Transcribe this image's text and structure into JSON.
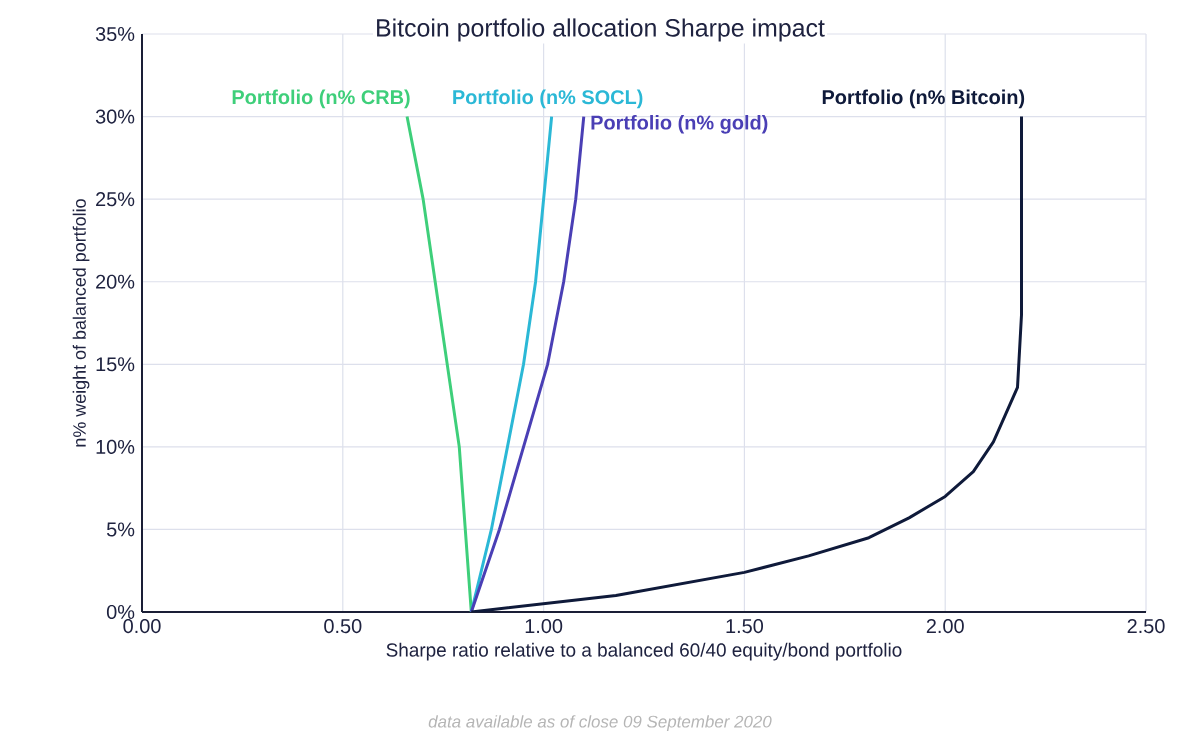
{
  "chart_data": {
    "type": "line",
    "title": "Bitcoin portfolio allocation Sharpe impact",
    "xlabel": "Sharpe ratio relative to a balanced 60/40 equity/bond portfolio",
    "ylabel": "n% weight of balanced portfolio",
    "annotations": [
      "data available as of close 09 September 2020"
    ],
    "xlim": [
      0,
      2.5
    ],
    "ylim": [
      0,
      35
    ],
    "xticks": [
      {
        "value": 0,
        "label": "0.00"
      },
      {
        "value": 0.5,
        "label": "0.50"
      },
      {
        "value": 1,
        "label": "1.00"
      },
      {
        "value": 1.5,
        "label": "1.50"
      },
      {
        "value": 2,
        "label": "2.00"
      },
      {
        "value": 2.5,
        "label": "2.50"
      }
    ],
    "yticks": [
      {
        "value": 0,
        "label": "0%"
      },
      {
        "value": 5,
        "label": "5%"
      },
      {
        "value": 10,
        "label": "10%"
      },
      {
        "value": 15,
        "label": "15%"
      },
      {
        "value": 20,
        "label": "20%"
      },
      {
        "value": 25,
        "label": "25%"
      },
      {
        "value": 30,
        "label": "30%"
      },
      {
        "value": 35,
        "label": "35%"
      }
    ],
    "grid": true,
    "legend": false,
    "marker": "none",
    "line_style": "solid",
    "series": [
      {
        "name": "Portfolio (n% CRB)",
        "color": "#3ecf7a",
        "x": [
          0.82,
          0.79,
          0.76,
          0.73,
          0.7,
          0.66
        ],
        "values": [
          0,
          10,
          15,
          20,
          25,
          30
        ]
      },
      {
        "name": "Portfolio (n% SOCL)",
        "color": "#2bb8d6",
        "x": [
          0.82,
          0.87,
          0.91,
          0.95,
          0.98,
          1.0,
          1.02
        ],
        "values": [
          0,
          5,
          10,
          15,
          20,
          25,
          30
        ]
      },
      {
        "name": "Portfolio (n% gold)",
        "color": "#4a3fb5",
        "x": [
          0.82,
          0.89,
          0.95,
          1.01,
          1.05,
          1.08,
          1.1
        ],
        "values": [
          0,
          5,
          10,
          15,
          20,
          25,
          30
        ]
      },
      {
        "name": "Portfolio (n% Bitcoin)",
        "color": "#0f1a3a",
        "x": [
          0.82,
          1.18,
          1.5,
          1.66,
          1.81,
          1.91,
          2.0,
          2.07,
          2.12,
          2.18,
          2.19,
          2.19
        ],
        "values": [
          0,
          1.0,
          2.4,
          3.4,
          4.5,
          5.7,
          7,
          8.5,
          10.3,
          13.6,
          18,
          30
        ]
      }
    ]
  }
}
